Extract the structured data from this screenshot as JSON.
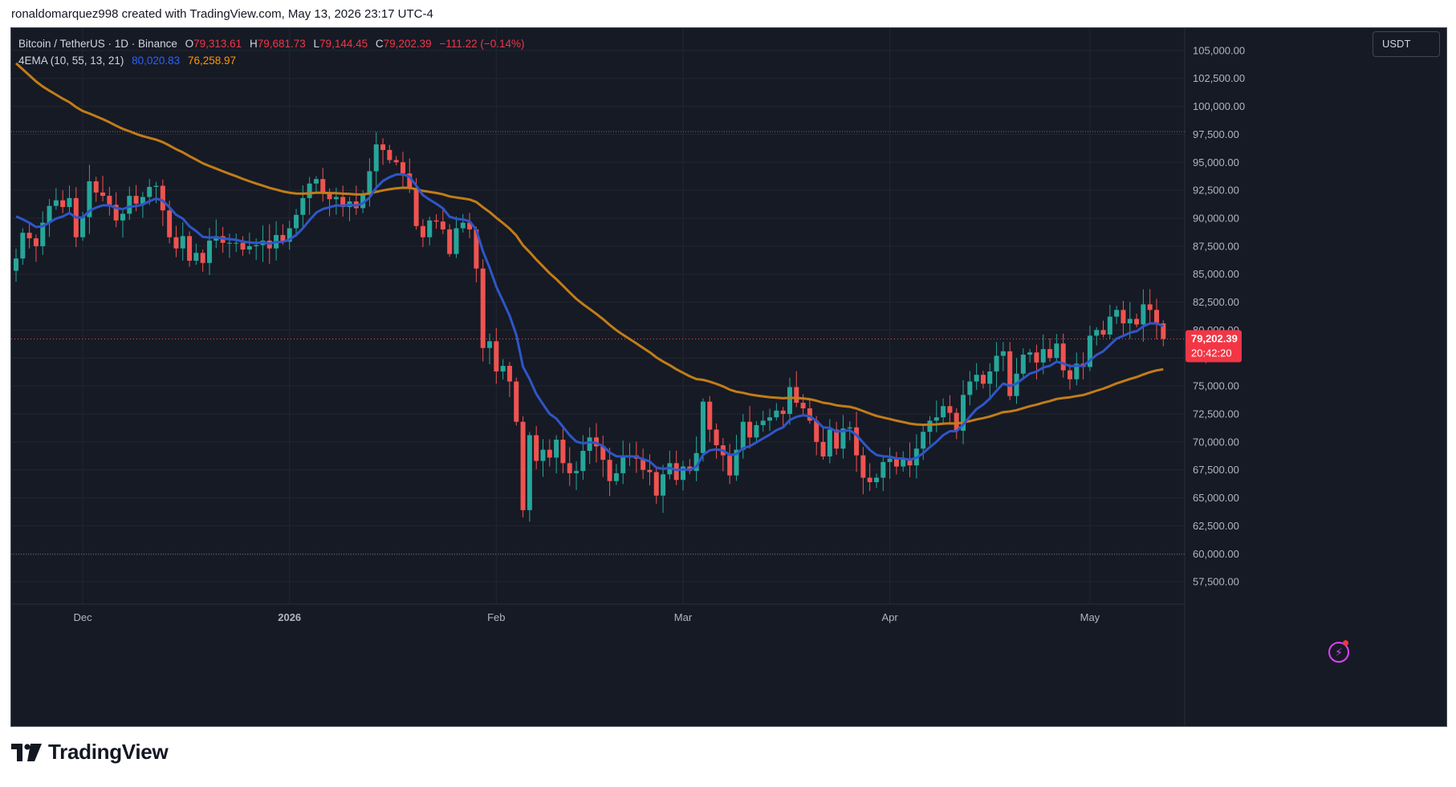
{
  "header": {
    "credit": "ronaldomarquez998 created with TradingView.com, May 13, 2026 23:17 UTC-4"
  },
  "legend": {
    "symbol": "Bitcoin / TetherUS · 1D · Binance",
    "open_label": "O",
    "open": "79,313.61",
    "high_label": "H",
    "high": "79,681.73",
    "low_label": "L",
    "low": "79,144.45",
    "close_label": "C",
    "close": "79,202.39",
    "change": "−111.22 (−0.14%)",
    "indicator": "4EMA (10, 55, 13, 21)",
    "ema_fast": "80,020.83",
    "ema_slow": "76,258.97"
  },
  "currency_button": "USDT",
  "price_tag": {
    "price": "79,202.39",
    "countdown": "20:42:20"
  },
  "brand": {
    "name": "TradingView"
  },
  "colors": {
    "background": "#161a25",
    "up": "#26a69a",
    "down": "#ef5350",
    "ema_fast": "#2f56c8",
    "ema_slow": "#c17d18"
  },
  "icons": {
    "alert": "lightning-icon",
    "logo": "tradingview-logo-icon"
  },
  "chart_data": {
    "type": "candlestick",
    "symbol": "BTCUSDT",
    "interval": "1D",
    "exchange": "Binance",
    "ylim": [
      55500,
      107000
    ],
    "y_ticks": [
      "105,000.00",
      "102,500.00",
      "100,000.00",
      "97,500.00",
      "95,000.00",
      "92,500.00",
      "90,000.00",
      "87,500.00",
      "85,000.00",
      "82,500.00",
      "80,000.00",
      "77,500.00",
      "75,000.00",
      "72,500.00",
      "70,000.00",
      "67,500.00",
      "65,000.00",
      "62,500.00",
      "60,000.00",
      "57,500.00"
    ],
    "y_tick_values": [
      105000,
      102500,
      100000,
      97500,
      95000,
      92500,
      90000,
      87500,
      85000,
      82500,
      80000,
      77500,
      75000,
      72500,
      70000,
      67500,
      65000,
      62500,
      60000,
      57500
    ],
    "x_ticks": [
      {
        "label": "Dec",
        "index": 10,
        "bold": false
      },
      {
        "label": "2026",
        "index": 41,
        "bold": true
      },
      {
        "label": "Feb",
        "index": 72,
        "bold": false
      },
      {
        "label": "Mar",
        "index": 100,
        "bold": false
      },
      {
        "label": "Apr",
        "index": 131,
        "bold": false
      },
      {
        "label": "May",
        "index": 161,
        "bold": false
      }
    ],
    "dotted_levels": [
      97750,
      59950,
      79202.39
    ],
    "last_price": 79202.39,
    "closes": [
      86400,
      88700,
      88200,
      87500,
      89600,
      91100,
      91600,
      91000,
      91800,
      88300,
      90100,
      93300,
      92300,
      92000,
      91200,
      89800,
      90400,
      92000,
      91300,
      91900,
      92800,
      92900,
      90700,
      88300,
      87300,
      88400,
      86200,
      86900,
      86000,
      88000,
      88400,
      87800,
      87800,
      87800,
      87200,
      87500,
      87600,
      88000,
      87300,
      88500,
      87900,
      89100,
      90300,
      91800,
      93100,
      93500,
      92300,
      91700,
      91900,
      91000,
      91500,
      90900,
      92200,
      94200,
      96600,
      96100,
      95200,
      95000,
      94000,
      92700,
      89300,
      88300,
      89800,
      89700,
      89000,
      86800,
      89100,
      89600,
      89000,
      85500,
      78400,
      79000,
      76300,
      76800,
      75400,
      71800,
      63900,
      70600,
      68300,
      69300,
      68600,
      70200,
      68100,
      67200,
      67400,
      69200,
      70400,
      69600,
      68400,
      66500,
      67200,
      68600,
      68800,
      68500,
      67500,
      67300,
      65200,
      67100,
      68100,
      66600,
      67800,
      67400,
      69000,
      73600,
      71100,
      69700,
      68800,
      67000,
      69300,
      71800,
      70400,
      71500,
      71900,
      72200,
      72800,
      72500,
      74900,
      73500,
      73000,
      71900,
      70000,
      68700,
      71100,
      69400,
      71200,
      71300,
      68800,
      66800,
      66400,
      66800,
      68200,
      68500,
      67800,
      68500,
      67900,
      69400,
      70900,
      71900,
      72200,
      73200,
      72600,
      71000,
      74200,
      75400,
      76000,
      75200,
      76300,
      77700,
      78100,
      74100,
      76100,
      77800,
      78000,
      77100,
      78300,
      77500,
      78800,
      76400,
      75600,
      77000,
      76700,
      79500,
      80000,
      79600,
      81200,
      81800,
      80600,
      81000,
      80500,
      82300,
      81800,
      80600,
      79202
    ]
  }
}
